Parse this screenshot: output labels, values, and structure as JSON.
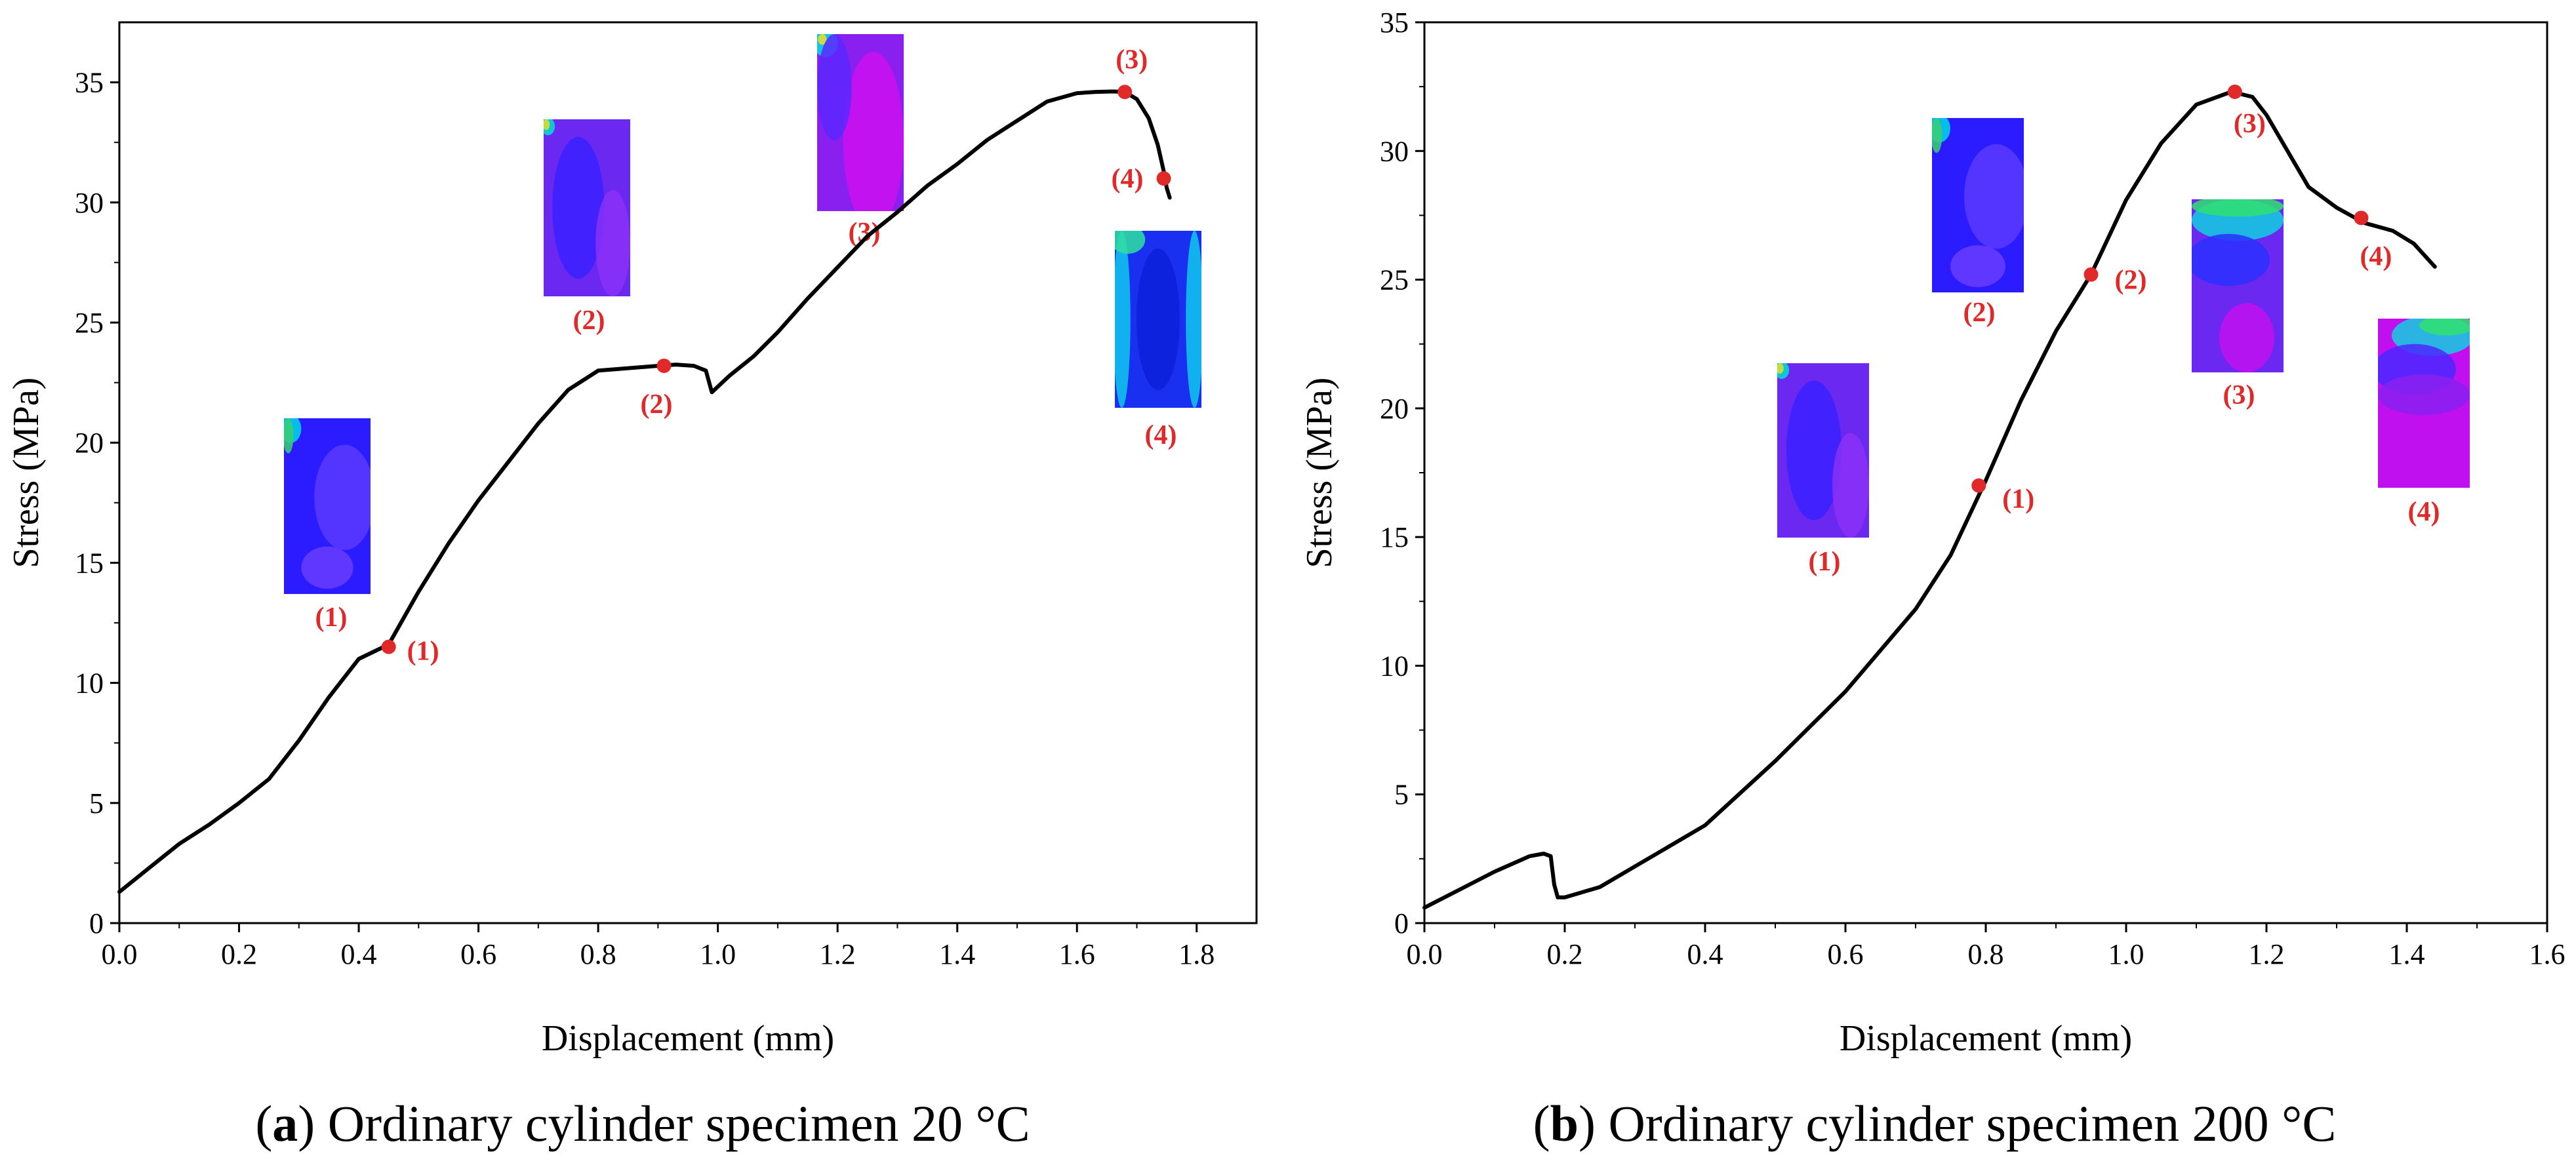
{
  "colors": {
    "curve": "#000000",
    "point": "#e02a2a",
    "label": "#e02a2a"
  },
  "chart_data": [
    {
      "id": "a",
      "type": "line",
      "caption_letter": "a",
      "caption_text": "Ordinary cylinder specimen 20 °C",
      "xlabel": "Displacement (mm)",
      "ylabel": "Stress (MPa)",
      "xlim": [
        0,
        1.9
      ],
      "ylim": [
        0,
        37.5
      ],
      "xticks": [
        0,
        0.2,
        0.4,
        0.6,
        0.8,
        1.0,
        1.2,
        1.4,
        1.6,
        1.8
      ],
      "xtick_labels": [
        "0.0",
        "0.2",
        "0.4",
        "0.6",
        "0.8",
        "1.0",
        "1.2",
        "1.4",
        "1.6",
        "1.8"
      ],
      "yticks": [
        0,
        5,
        10,
        15,
        20,
        25,
        30,
        35
      ],
      "ytick_labels": [
        "0",
        "5",
        "10",
        "15",
        "20",
        "25",
        "30",
        "35"
      ],
      "series": [
        {
          "name": "stress-displacement",
          "x": [
            0,
            0.05,
            0.1,
            0.15,
            0.2,
            0.25,
            0.3,
            0.35,
            0.4,
            0.45,
            0.5,
            0.55,
            0.6,
            0.65,
            0.7,
            0.75,
            0.8,
            0.85,
            0.9,
            0.93,
            0.96,
            0.98,
            0.99,
            1.02,
            1.06,
            1.1,
            1.15,
            1.2,
            1.25,
            1.3,
            1.35,
            1.4,
            1.45,
            1.5,
            1.55,
            1.6,
            1.63,
            1.66,
            1.68,
            1.7,
            1.72,
            1.735,
            1.745,
            1.75,
            1.755
          ],
          "y": [
            1.3,
            2.3,
            3.3,
            4.1,
            5.0,
            6.0,
            7.6,
            9.4,
            11.0,
            11.6,
            13.8,
            15.8,
            17.6,
            19.2,
            20.8,
            22.2,
            23.0,
            23.1,
            23.2,
            23.25,
            23.2,
            23.0,
            22.1,
            22.8,
            23.6,
            24.6,
            26.0,
            27.3,
            28.6,
            29.6,
            30.7,
            31.6,
            32.6,
            33.4,
            34.2,
            34.55,
            34.6,
            34.62,
            34.6,
            34.3,
            33.5,
            32.4,
            31.3,
            30.6,
            30.2
          ]
        }
      ],
      "points": [
        {
          "label": "(1)",
          "x": 0.45,
          "y": 11.5
        },
        {
          "label": "(2)",
          "x": 0.91,
          "y": 23.2
        },
        {
          "label": "(3)",
          "x": 1.68,
          "y": 34.6
        },
        {
          "label": "(4)",
          "x": 1.745,
          "y": 31.0
        }
      ],
      "maps": [
        {
          "label": "(1)",
          "palette": "blue"
        },
        {
          "label": "(2)",
          "palette": "purple"
        },
        {
          "label": "(3)",
          "palette": "magenta"
        },
        {
          "label": "(4)",
          "palette": "blue-cyan"
        }
      ]
    },
    {
      "id": "b",
      "type": "line",
      "caption_letter": "b",
      "caption_text": "Ordinary cylinder specimen 200 °C",
      "xlabel": "Displacement (mm)",
      "ylabel": "Stress (MPa)",
      "xlim": [
        0,
        1.6
      ],
      "ylim": [
        0,
        35
      ],
      "xticks": [
        0,
        0.2,
        0.4,
        0.6,
        0.8,
        1.0,
        1.2,
        1.4,
        1.6
      ],
      "xtick_labels": [
        "0.0",
        "0.2",
        "0.4",
        "0.6",
        "0.8",
        "1.0",
        "1.2",
        "1.4",
        "1.6"
      ],
      "yticks": [
        0,
        5,
        10,
        15,
        20,
        25,
        30,
        35
      ],
      "ytick_labels": [
        "0",
        "5",
        "10",
        "15",
        "20",
        "25",
        "30",
        "35"
      ],
      "series": [
        {
          "name": "stress-displacement",
          "x": [
            0,
            0.05,
            0.1,
            0.15,
            0.17,
            0.18,
            0.185,
            0.19,
            0.2,
            0.25,
            0.3,
            0.4,
            0.5,
            0.6,
            0.7,
            0.75,
            0.8,
            0.85,
            0.9,
            0.95,
            1.0,
            1.05,
            1.1,
            1.15,
            1.18,
            1.2,
            1.23,
            1.26,
            1.3,
            1.34,
            1.38,
            1.41,
            1.44
          ],
          "y": [
            0.6,
            1.3,
            2.0,
            2.6,
            2.7,
            2.6,
            1.5,
            1.0,
            1.0,
            1.4,
            2.2,
            3.8,
            6.3,
            9.0,
            12.2,
            14.3,
            17.2,
            20.3,
            23.0,
            25.2,
            28.1,
            30.3,
            31.8,
            32.3,
            32.1,
            31.4,
            30.0,
            28.6,
            27.8,
            27.2,
            26.9,
            26.4,
            25.5
          ]
        }
      ],
      "points": [
        {
          "label": "(1)",
          "x": 0.79,
          "y": 17.0
        },
        {
          "label": "(2)",
          "x": 0.95,
          "y": 25.2
        },
        {
          "label": "(3)",
          "x": 1.155,
          "y": 32.3
        },
        {
          "label": "(4)",
          "x": 1.335,
          "y": 27.4
        }
      ],
      "maps": [
        {
          "label": "(1)",
          "palette": "purple"
        },
        {
          "label": "(2)",
          "palette": "blue"
        },
        {
          "label": "(3)",
          "palette": "mixed"
        },
        {
          "label": "(4)",
          "palette": "magenta-bottom"
        }
      ]
    }
  ]
}
